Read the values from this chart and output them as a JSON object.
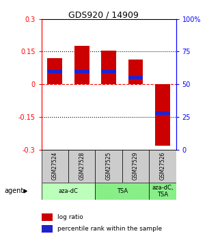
{
  "title": "GDS920 / 14909",
  "samples": [
    "GSM27524",
    "GSM27528",
    "GSM27525",
    "GSM27529",
    "GSM27526"
  ],
  "log_ratios": [
    0.12,
    0.175,
    0.155,
    0.115,
    -0.28
  ],
  "percentile_ranks": [
    60,
    60,
    60,
    55,
    28
  ],
  "agents": [
    {
      "label": "aza-dC",
      "span": [
        0,
        2
      ],
      "color": "#bbffbb"
    },
    {
      "label": "TSA",
      "span": [
        2,
        4
      ],
      "color": "#88ee88"
    },
    {
      "label": "aza-dC,\nTSA",
      "span": [
        4,
        5
      ],
      "color": "#88ee88"
    }
  ],
  "ylim": [
    -0.3,
    0.3
  ],
  "yticks_left": [
    -0.3,
    -0.15,
    0,
    0.15,
    0.3
  ],
  "yticks_right": [
    0,
    25,
    50,
    75,
    100
  ],
  "bar_color": "#cc0000",
  "blue_color": "#2222cc",
  "bar_width": 0.55,
  "blue_bar_height": 0.015,
  "label_log_ratio": "log ratio",
  "label_percentile": "percentile rank within the sample",
  "sample_box_color": "#cccccc",
  "grid_color": "#000000"
}
